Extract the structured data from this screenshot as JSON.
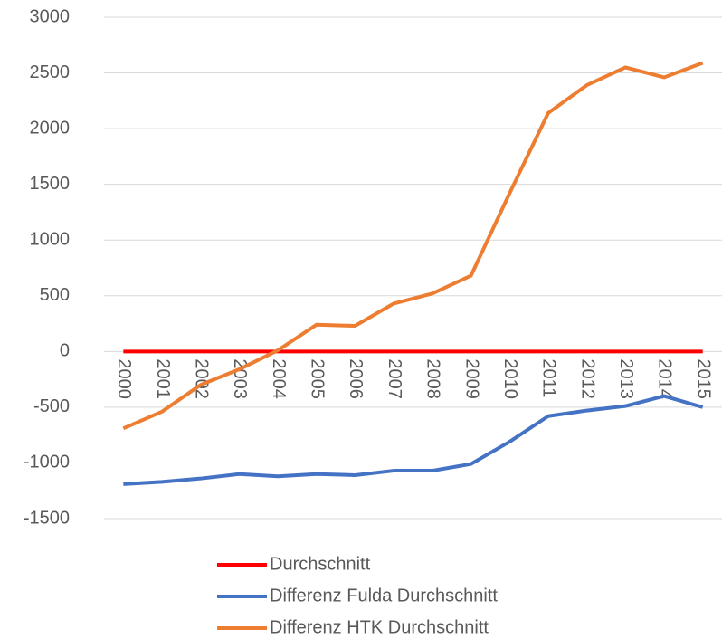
{
  "chart_data": {
    "type": "line",
    "categories": [
      "2000",
      "2001",
      "2002",
      "2003",
      "2004",
      "2005",
      "2006",
      "2007",
      "2008",
      "2009",
      "2010",
      "2011",
      "2012",
      "2013",
      "2014",
      "2015"
    ],
    "series": [
      {
        "name": "Durchschnitt",
        "color": "#ff0000",
        "values": [
          0,
          0,
          0,
          0,
          0,
          0,
          0,
          0,
          0,
          0,
          0,
          0,
          0,
          0,
          0,
          0
        ]
      },
      {
        "name": "Differenz Fulda Durchschnitt",
        "color": "#4472c4",
        "values": [
          -1190,
          -1170,
          -1140,
          -1100,
          -1120,
          -1100,
          -1110,
          -1070,
          -1070,
          -1010,
          -810,
          -580,
          -530,
          -490,
          -400,
          -500
        ]
      },
      {
        "name": "Differenz HTK Durchschnitt",
        "color": "#ed7d31",
        "values": [
          -690,
          -540,
          -300,
          -160,
          10,
          240,
          230,
          430,
          520,
          680,
          1420,
          2140,
          2390,
          2550,
          2460,
          2590
        ]
      }
    ],
    "ylim": [
      -1500,
      3000
    ],
    "yticks": [
      -1500,
      -1000,
      -500,
      0,
      500,
      1000,
      1500,
      2000,
      2500,
      3000
    ],
    "grid": true,
    "legend": "bottom"
  }
}
